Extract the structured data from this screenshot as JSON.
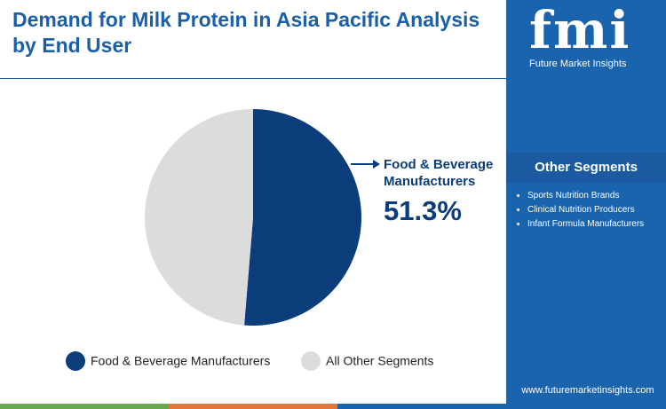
{
  "chart_data": {
    "type": "pie",
    "title": "Demand for Milk Protein in Asia Pacific Analysis by End User",
    "categories": [
      "Food & Beverage Manufacturers",
      "All Other Segments"
    ],
    "values": [
      51.3,
      48.7
    ],
    "value_labels": [
      "51.3%",
      null
    ],
    "colors": [
      "#0b3d7a",
      "#dcdcdc"
    ]
  },
  "sidebar": {
    "brand": "fmi",
    "brand_name": "Future Market Insights",
    "heading": "Other Segments",
    "items": [
      "Sports Nutrition Brands",
      "Clinical Nutrition Producers",
      "Infant Formula Manufacturers"
    ],
    "website": "www.futuremarketinsights.com"
  }
}
